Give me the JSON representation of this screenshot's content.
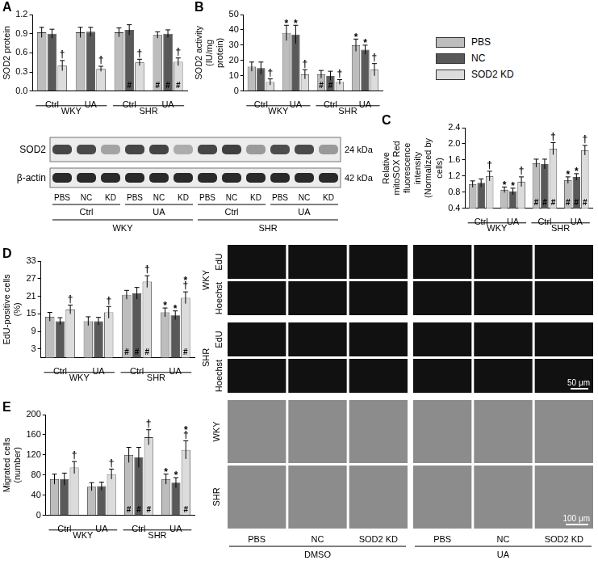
{
  "chart_data": [
    {
      "panel": "A",
      "type": "bar",
      "y_label": "SOD2 protein",
      "categories": [
        "Ctrl",
        "UA",
        "Ctrl",
        "UA"
      ],
      "groups": [
        {
          "label": "WKY",
          "from": 0,
          "to": 1
        },
        {
          "label": "SHR",
          "from": 2,
          "to": 3
        }
      ],
      "ylim": [
        0,
        1.2
      ],
      "yticks": [
        {
          "value": 0,
          "label": "0.0"
        },
        0.3,
        0.6,
        0.9,
        1.2
      ],
      "grid": false,
      "series": [
        {
          "name": "PBS",
          "color": "#bdbdbd",
          "values": [
            0.92,
            0.92,
            0.92,
            0.88
          ],
          "errors": [
            0.08,
            0.08,
            0.07,
            0.05
          ],
          "marks_top": [
            null,
            null,
            null,
            null
          ],
          "marks_bottom": [
            null,
            null,
            null,
            "#"
          ]
        },
        {
          "name": "NC",
          "color": "#595959",
          "values": [
            0.9,
            0.93,
            0.96,
            0.9
          ],
          "errors": [
            0.07,
            0.07,
            0.08,
            0.06
          ],
          "marks_top": [
            null,
            null,
            null,
            null
          ],
          "marks_bottom": [
            null,
            null,
            "#",
            "#"
          ]
        },
        {
          "name": "SOD2 KD",
          "color": "#dcdcdc",
          "values": [
            0.4,
            0.35,
            0.45,
            0.46
          ],
          "errors": [
            0.08,
            0.04,
            0.05,
            0.06
          ],
          "marks_top": [
            "†",
            "†",
            "†",
            "†"
          ],
          "marks_bottom": [
            null,
            null,
            null,
            "#"
          ]
        }
      ]
    },
    {
      "panel": "B",
      "type": "bar",
      "y_label": "SOD2 activity (IU/mg protein)",
      "categories": [
        "Ctrl",
        "UA",
        "Ctrl",
        "UA"
      ],
      "groups": [
        {
          "label": "WKY",
          "from": 0,
          "to": 1
        },
        {
          "label": "SHR",
          "from": 2,
          "to": 3
        }
      ],
      "ylim": [
        0,
        50
      ],
      "yticks": [
        0,
        10,
        20,
        30,
        40,
        50
      ],
      "grid": false,
      "legend": "right",
      "series": [
        {
          "name": "PBS",
          "color": "#bdbdbd",
          "values": [
            16,
            38,
            11,
            30
          ],
          "errors": [
            3,
            5,
            2.5,
            4
          ],
          "marks_top": [
            null,
            "*",
            null,
            "*"
          ],
          "marks_bottom": [
            null,
            null,
            "#",
            null
          ]
        },
        {
          "name": "NC",
          "color": "#595959",
          "values": [
            15,
            37,
            10,
            27
          ],
          "errors": [
            4,
            6,
            3,
            3
          ],
          "marks_top": [
            null,
            "*",
            null,
            "*"
          ],
          "marks_bottom": [
            null,
            null,
            "#",
            null
          ]
        },
        {
          "name": "SOD2 KD",
          "color": "#dcdcdc",
          "values": [
            6,
            11,
            6,
            14
          ],
          "errors": [
            2,
            3,
            1.5,
            4
          ],
          "marks_top": [
            "†",
            "†",
            "†",
            "†"
          ],
          "marks_bottom": [
            null,
            null,
            null,
            null
          ]
        }
      ]
    },
    {
      "panel": "C",
      "type": "bar",
      "y_label": "Relative mitoSOX Red fluorescence intensity (Normalized by cells)",
      "categories": [
        "Ctrl",
        "UA",
        "Ctrl",
        "UA"
      ],
      "groups": [
        {
          "label": "WKY",
          "from": 0,
          "to": 1
        },
        {
          "label": "SHR",
          "from": 2,
          "to": 3
        }
      ],
      "ylim": [
        0.4,
        2.4
      ],
      "yticks": [
        0.4,
        0.8,
        1.2,
        1.6,
        {
          "value": 2,
          "label": "2.0"
        },
        2.4
      ],
      "grid": false,
      "series": [
        {
          "name": "PBS",
          "color": "#bdbdbd",
          "values": [
            1.0,
            0.86,
            1.52,
            1.1
          ],
          "errors": [
            0.08,
            0.07,
            0.1,
            0.08
          ],
          "marks_top": [
            null,
            "*",
            null,
            "*"
          ],
          "marks_bottom": [
            null,
            null,
            "#",
            "#"
          ]
        },
        {
          "name": "NC",
          "color": "#595959",
          "values": [
            1.03,
            0.82,
            1.5,
            1.18
          ],
          "errors": [
            0.1,
            0.08,
            0.12,
            0.08
          ],
          "marks_top": [
            null,
            "*",
            null,
            "*"
          ],
          "marks_bottom": [
            null,
            null,
            "#",
            "#"
          ]
        },
        {
          "name": "SOD2 KD",
          "color": "#dcdcdc",
          "values": [
            1.2,
            1.06,
            1.88,
            1.84
          ],
          "errors": [
            0.12,
            0.12,
            0.15,
            0.12
          ],
          "marks_top": [
            "†",
            "†",
            "†",
            "†"
          ],
          "marks_bottom": [
            null,
            null,
            "#",
            "#"
          ]
        }
      ]
    },
    {
      "panel": "D",
      "type": "bar",
      "y_label": "EdU-positive cells (%)",
      "categories": [
        "Ctrl",
        "UA",
        "Ctrl",
        "UA"
      ],
      "groups": [
        {
          "label": "WKY",
          "from": 0,
          "to": 1
        },
        {
          "label": "SHR",
          "from": 2,
          "to": 3
        }
      ],
      "ylim": [
        0,
        33
      ],
      "yticks": [
        3,
        9,
        15,
        21,
        27,
        33
      ],
      "grid": false,
      "series": [
        {
          "name": "PBS",
          "color": "#bdbdbd",
          "values": [
            14,
            12.5,
            21.5,
            15.5
          ],
          "errors": [
            1.5,
            1.5,
            1.5,
            1.5
          ],
          "marks_top": [
            null,
            null,
            null,
            "*"
          ],
          "marks_bottom": [
            null,
            null,
            "#",
            null
          ]
        },
        {
          "name": "NC",
          "color": "#595959",
          "values": [
            12.5,
            12.5,
            22,
            14.5
          ],
          "errors": [
            1.2,
            1.3,
            2,
            1.5
          ],
          "marks_top": [
            null,
            null,
            null,
            "*"
          ],
          "marks_bottom": [
            null,
            null,
            "#",
            null
          ]
        },
        {
          "name": "SOD2 KD",
          "color": "#dcdcdc",
          "values": [
            16.5,
            15.5,
            26,
            20.5
          ],
          "errors": [
            1.5,
            2,
            2,
            2
          ],
          "marks_top": [
            "†",
            "†",
            "†",
            "*†"
          ],
          "marks_bottom": [
            null,
            null,
            "#",
            "#"
          ]
        }
      ]
    },
    {
      "panel": "E",
      "type": "bar",
      "y_label": "Migrated cells (number)",
      "categories": [
        "Ctrl",
        "UA",
        "Ctrl",
        "UA"
      ],
      "groups": [
        {
          "label": "WKY",
          "from": 0,
          "to": 1
        },
        {
          "label": "SHR",
          "from": 2,
          "to": 3
        }
      ],
      "ylim": [
        0,
        200
      ],
      "yticks": [
        0,
        40,
        80,
        120,
        160,
        200
      ],
      "grid": false,
      "series": [
        {
          "name": "PBS",
          "color": "#bdbdbd",
          "values": [
            72,
            57,
            120,
            72
          ],
          "errors": [
            10,
            8,
            15,
            10
          ],
          "marks_top": [
            null,
            null,
            null,
            "*"
          ],
          "marks_bottom": [
            null,
            null,
            "#",
            null
          ]
        },
        {
          "name": "NC",
          "color": "#595959",
          "values": [
            72,
            58,
            115,
            65
          ],
          "errors": [
            12,
            8,
            20,
            10
          ],
          "marks_top": [
            null,
            null,
            null,
            "*"
          ],
          "marks_bottom": [
            null,
            null,
            "#",
            null
          ]
        },
        {
          "name": "SOD2 KD",
          "color": "#dcdcdc",
          "values": [
            95,
            82,
            155,
            130
          ],
          "errors": [
            12,
            10,
            15,
            18
          ],
          "marks_top": [
            "†",
            "†",
            "†",
            "*†"
          ],
          "marks_bottom": [
            null,
            null,
            "#",
            "#"
          ]
        }
      ]
    }
  ],
  "blot": {
    "rows": [
      {
        "label": "SOD2",
        "size": "24 kDa"
      },
      {
        "label": "β-actin",
        "size": "42 kDa"
      }
    ],
    "lanes": [
      "PBS",
      "NC",
      "KD",
      "PBS",
      "NC",
      "KD",
      "PBS",
      "NC",
      "KD",
      "PBS",
      "NC",
      "KD"
    ],
    "treatments": [
      "Ctrl",
      "UA",
      "Ctrl",
      "UA"
    ],
    "strains": [
      "WKY",
      "SHR"
    ]
  },
  "edu_images": {
    "strains": [
      "WKY",
      "SHR"
    ],
    "stains": [
      "EdU",
      "Hoechst"
    ],
    "scale_bar": "50 μm"
  },
  "migration_images": {
    "strains": [
      "WKY",
      "SHR"
    ],
    "columns": [
      "PBS",
      "NC",
      "SOD2 KD",
      "PBS",
      "NC",
      "SOD2 KD"
    ],
    "treatments": [
      "DMSO",
      "UA"
    ],
    "scale_bar": "100 μm"
  }
}
